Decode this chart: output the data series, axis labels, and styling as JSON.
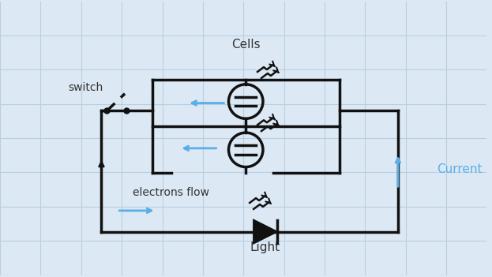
{
  "bg_color": "#dce9f5",
  "grid_color": "#b8cfe0",
  "wire_color": "#111111",
  "blue_color": "#5aaee8",
  "current_color": "#5aaee8",
  "title_cells": "Cells",
  "title_light": "Light",
  "title_switch": "switch",
  "title_electrons": "electrons flow",
  "title_current": "Current",
  "lw": 2.5
}
